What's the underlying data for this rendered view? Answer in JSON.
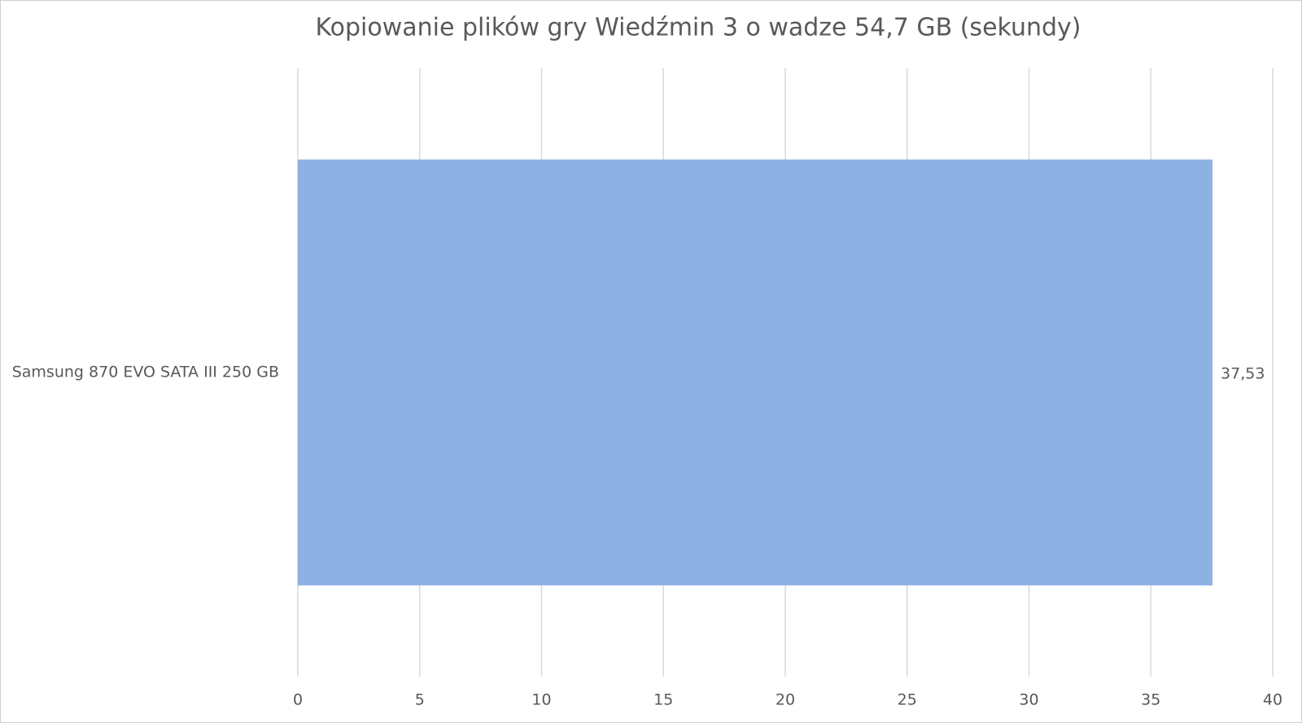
{
  "chart_data": {
    "type": "bar",
    "orientation": "horizontal",
    "title": "Kopiowanie plików gry Wiedźmin 3 o wadze 54,7 GB (sekundy)",
    "categories": [
      "Samsung 870 EVO SATA III 250 GB"
    ],
    "values": [
      37.53
    ],
    "value_labels": [
      "37,53"
    ],
    "color": "#8eb1e3",
    "xlim": [
      0,
      40
    ],
    "xticks": [
      0,
      5,
      10,
      15,
      20,
      25,
      30,
      35,
      40
    ],
    "grid": true
  }
}
